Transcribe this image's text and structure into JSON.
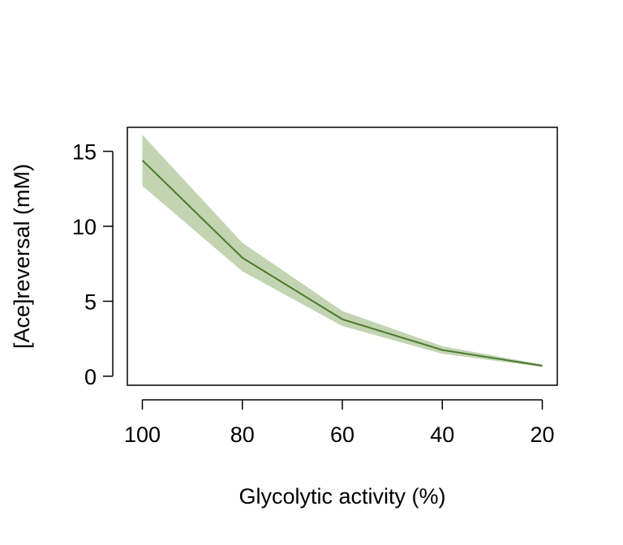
{
  "chart_data": {
    "type": "area",
    "title": "",
    "xlabel": "Glycolytic activity (%)",
    "ylabel": "[Ace]reversal (mM)",
    "x": [
      100,
      80,
      60,
      40,
      20
    ],
    "xlim": [
      103,
      17
    ],
    "ylim": [
      -0.6,
      16.6
    ],
    "xticks": [
      100,
      80,
      60,
      40,
      20
    ],
    "yticks": [
      0,
      5,
      10,
      15
    ],
    "grid": false,
    "legend": "none",
    "series": [
      {
        "values": [
          14.4,
          7.9,
          3.8,
          1.75,
          0.7
        ],
        "lower": [
          12.7,
          7.0,
          3.35,
          1.5,
          0.62
        ],
        "upper": [
          16.1,
          8.9,
          4.35,
          2.0,
          0.78
        ]
      }
    ],
    "colors": {
      "line": "#4a7a2f",
      "band": "#c2d4b2"
    }
  }
}
